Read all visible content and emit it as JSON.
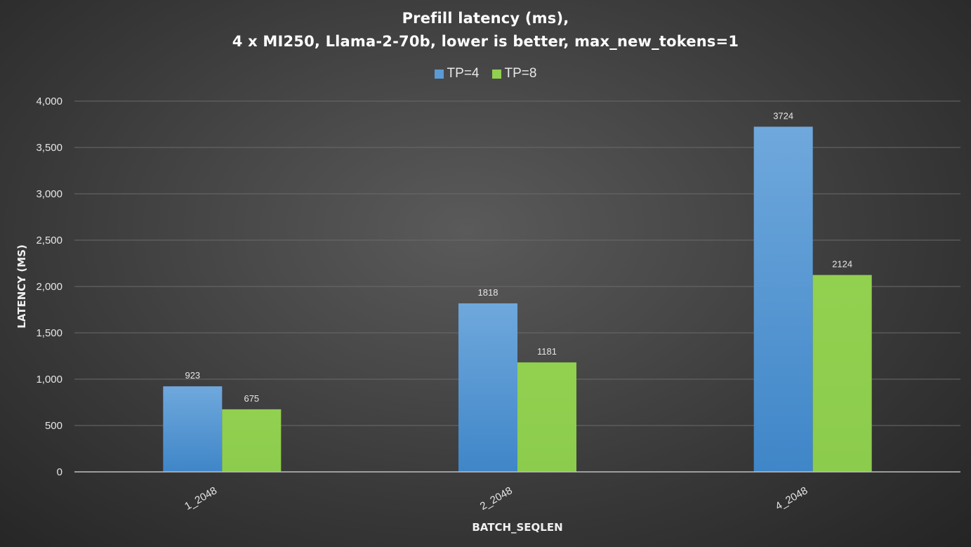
{
  "chart_data": {
    "type": "bar",
    "title": "Prefill latency (ms),",
    "subtitle": "4 x MI250, Llama-2-70b, lower is better, max_new_tokens=1",
    "xlabel": "BATCH_SEQLEN",
    "ylabel": "LATENCY (MS)",
    "categories": [
      "1_2048",
      "2_2048",
      "4_2048"
    ],
    "series": [
      {
        "name": "TP=4",
        "values": [
          923,
          1818,
          3724
        ],
        "color": "#5b9bd5"
      },
      {
        "name": "TP=8",
        "values": [
          675,
          1181,
          2124
        ],
        "color": "#92d050"
      }
    ],
    "ylim": [
      0,
      4000
    ],
    "yticks": [
      0,
      500,
      1000,
      1500,
      2000,
      2500,
      3000,
      3500,
      4000
    ],
    "ytick_labels": [
      "0",
      "500",
      "1,000",
      "1,500",
      "2,000",
      "2,500",
      "3,000",
      "3,500",
      "4,000"
    ],
    "grid": true,
    "legend_position": "top-center"
  }
}
